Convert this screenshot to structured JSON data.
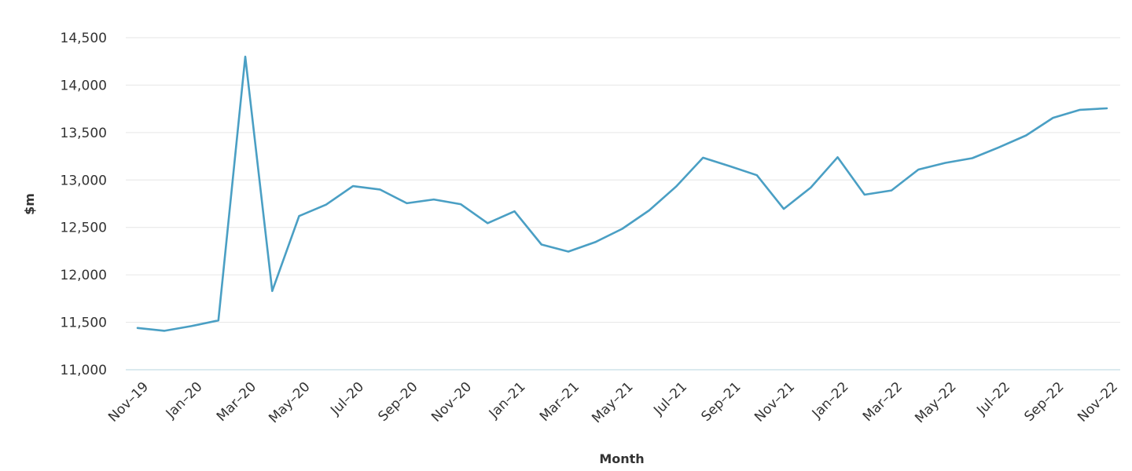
{
  "chart_data": {
    "type": "line",
    "title": "",
    "xlabel": "Month",
    "ylabel": "$m",
    "ylim": [
      11000,
      14500
    ],
    "yticks": [
      11000,
      11500,
      12000,
      12500,
      13000,
      13500,
      14000,
      14500
    ],
    "ytick_labels": [
      "11,000",
      "11,500",
      "12,000",
      "12,500",
      "13,000",
      "13,500",
      "14,000",
      "14,500"
    ],
    "grid": true,
    "legend": "none",
    "line_color": "#4a9fc4",
    "categories": [
      "Nov-19",
      "Dec-19",
      "Jan-20",
      "Feb-20",
      "Mar-20",
      "Apr-20",
      "May-20",
      "Jun-20",
      "Jul-20",
      "Aug-20",
      "Sep-20",
      "Oct-20",
      "Nov-20",
      "Dec-20",
      "Jan-21",
      "Feb-21",
      "Mar-21",
      "Apr-21",
      "May-21",
      "Jun-21",
      "Jul-21",
      "Aug-21",
      "Sep-21",
      "Oct-21",
      "Nov-21",
      "Dec-21",
      "Jan-22",
      "Feb-22",
      "Mar-22",
      "Apr-22",
      "May-22",
      "Jun-22",
      "Jul-22",
      "Aug-22",
      "Sep-22",
      "Oct-22",
      "Nov-22"
    ],
    "xtick_labels": [
      "Nov–19",
      "Jan–20",
      "Mar–20",
      "May–20",
      "Jul–20",
      "Sep–20",
      "Nov–20",
      "Jan–21",
      "Mar–21",
      "May–21",
      "Jul–21",
      "Sep–21",
      "Nov–21",
      "Jan–22",
      "Mar–22",
      "May–22",
      "Jul–22",
      "Sep–22",
      "Nov–22"
    ],
    "series": [
      {
        "values": [
          11440,
          11410,
          11460,
          11520,
          14300,
          11830,
          12620,
          12740,
          12935,
          12900,
          12755,
          12795,
          12745,
          12545,
          12670,
          12320,
          12245,
          12345,
          12485,
          12680,
          12930,
          13235,
          13145,
          13050,
          12695,
          12920,
          13240,
          12845,
          12890,
          13110,
          13180,
          13230,
          13345,
          13470,
          13655,
          13740,
          13755
        ]
      }
    ]
  }
}
